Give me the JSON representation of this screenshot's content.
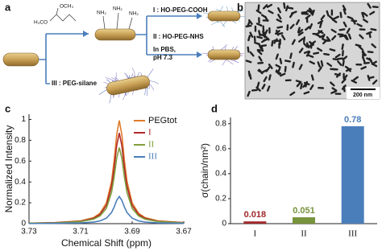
{
  "panel_a": {
    "label": "a",
    "chem": [
      "OCH₃",
      "H₃CO",
      "NH₂",
      "NH₂",
      "NH₂"
    ],
    "routes": [
      "I : HO-PEG-COOH",
      "II : HO-PEG-NHS",
      "III : PEG-silane"
    ],
    "condition": [
      "In PBS,",
      "pH 7.3"
    ]
  },
  "panel_b": {
    "label": "b",
    "scale_bar": "200 nm"
  },
  "chart_data": [
    {
      "type": "line",
      "panel_label": "c",
      "xlabel": "Chemical Shift (ppm)",
      "ylabel": "Normalized Intensity",
      "x": [
        3.73,
        3.72,
        3.71,
        3.705,
        3.7025,
        3.7,
        3.698,
        3.697,
        3.696,
        3.695,
        3.694,
        3.693,
        3.692,
        3.69,
        3.6875,
        3.685,
        3.68,
        3.67
      ],
      "xlim": [
        3.73,
        3.67
      ],
      "xticks": [
        3.73,
        3.71,
        3.69,
        3.67
      ],
      "ylim": [
        0,
        1.05
      ],
      "yticks": [
        0,
        0.2,
        0.4,
        0.6,
        0.8,
        1
      ],
      "legend": "upper right",
      "series": [
        {
          "name": "PEGtot",
          "color": "#e07b2a",
          "values": [
            0.005,
            0.01,
            0.027,
            0.058,
            0.099,
            0.198,
            0.406,
            0.604,
            0.853,
            0.99,
            0.853,
            0.604,
            0.406,
            0.198,
            0.099,
            0.058,
            0.027,
            0.01
          ]
        },
        {
          "name": "I",
          "color": "#b02a2a",
          "values": [
            0.004,
            0.009,
            0.023,
            0.051,
            0.087,
            0.174,
            0.357,
            0.531,
            0.75,
            0.87,
            0.75,
            0.531,
            0.357,
            0.174,
            0.087,
            0.051,
            0.023,
            0.009
          ]
        },
        {
          "name": "II",
          "color": "#7fa03c",
          "values": [
            0.004,
            0.007,
            0.02,
            0.043,
            0.073,
            0.146,
            0.299,
            0.445,
            0.629,
            0.73,
            0.629,
            0.445,
            0.299,
            0.146,
            0.073,
            0.043,
            0.02,
            0.007
          ]
        },
        {
          "name": "III",
          "color": "#4a7ebb",
          "values": [
            0.001,
            0.003,
            0.007,
            0.015,
            0.026,
            0.052,
            0.107,
            0.159,
            0.224,
            0.26,
            0.224,
            0.159,
            0.107,
            0.052,
            0.026,
            0.015,
            0.007,
            0.003
          ]
        }
      ]
    },
    {
      "type": "bar",
      "panel_label": "d",
      "ylabel": "σ(chain/nm²)",
      "categories": [
        "I",
        "II",
        "III"
      ],
      "values": [
        0.018,
        0.051,
        0.78
      ],
      "colors": [
        "#a0282a",
        "#77933c",
        "#4a7ebb"
      ],
      "ylim": [
        0,
        0.85
      ],
      "yticks": [
        0,
        0.2,
        0.4,
        0.6,
        0.8
      ]
    }
  ]
}
